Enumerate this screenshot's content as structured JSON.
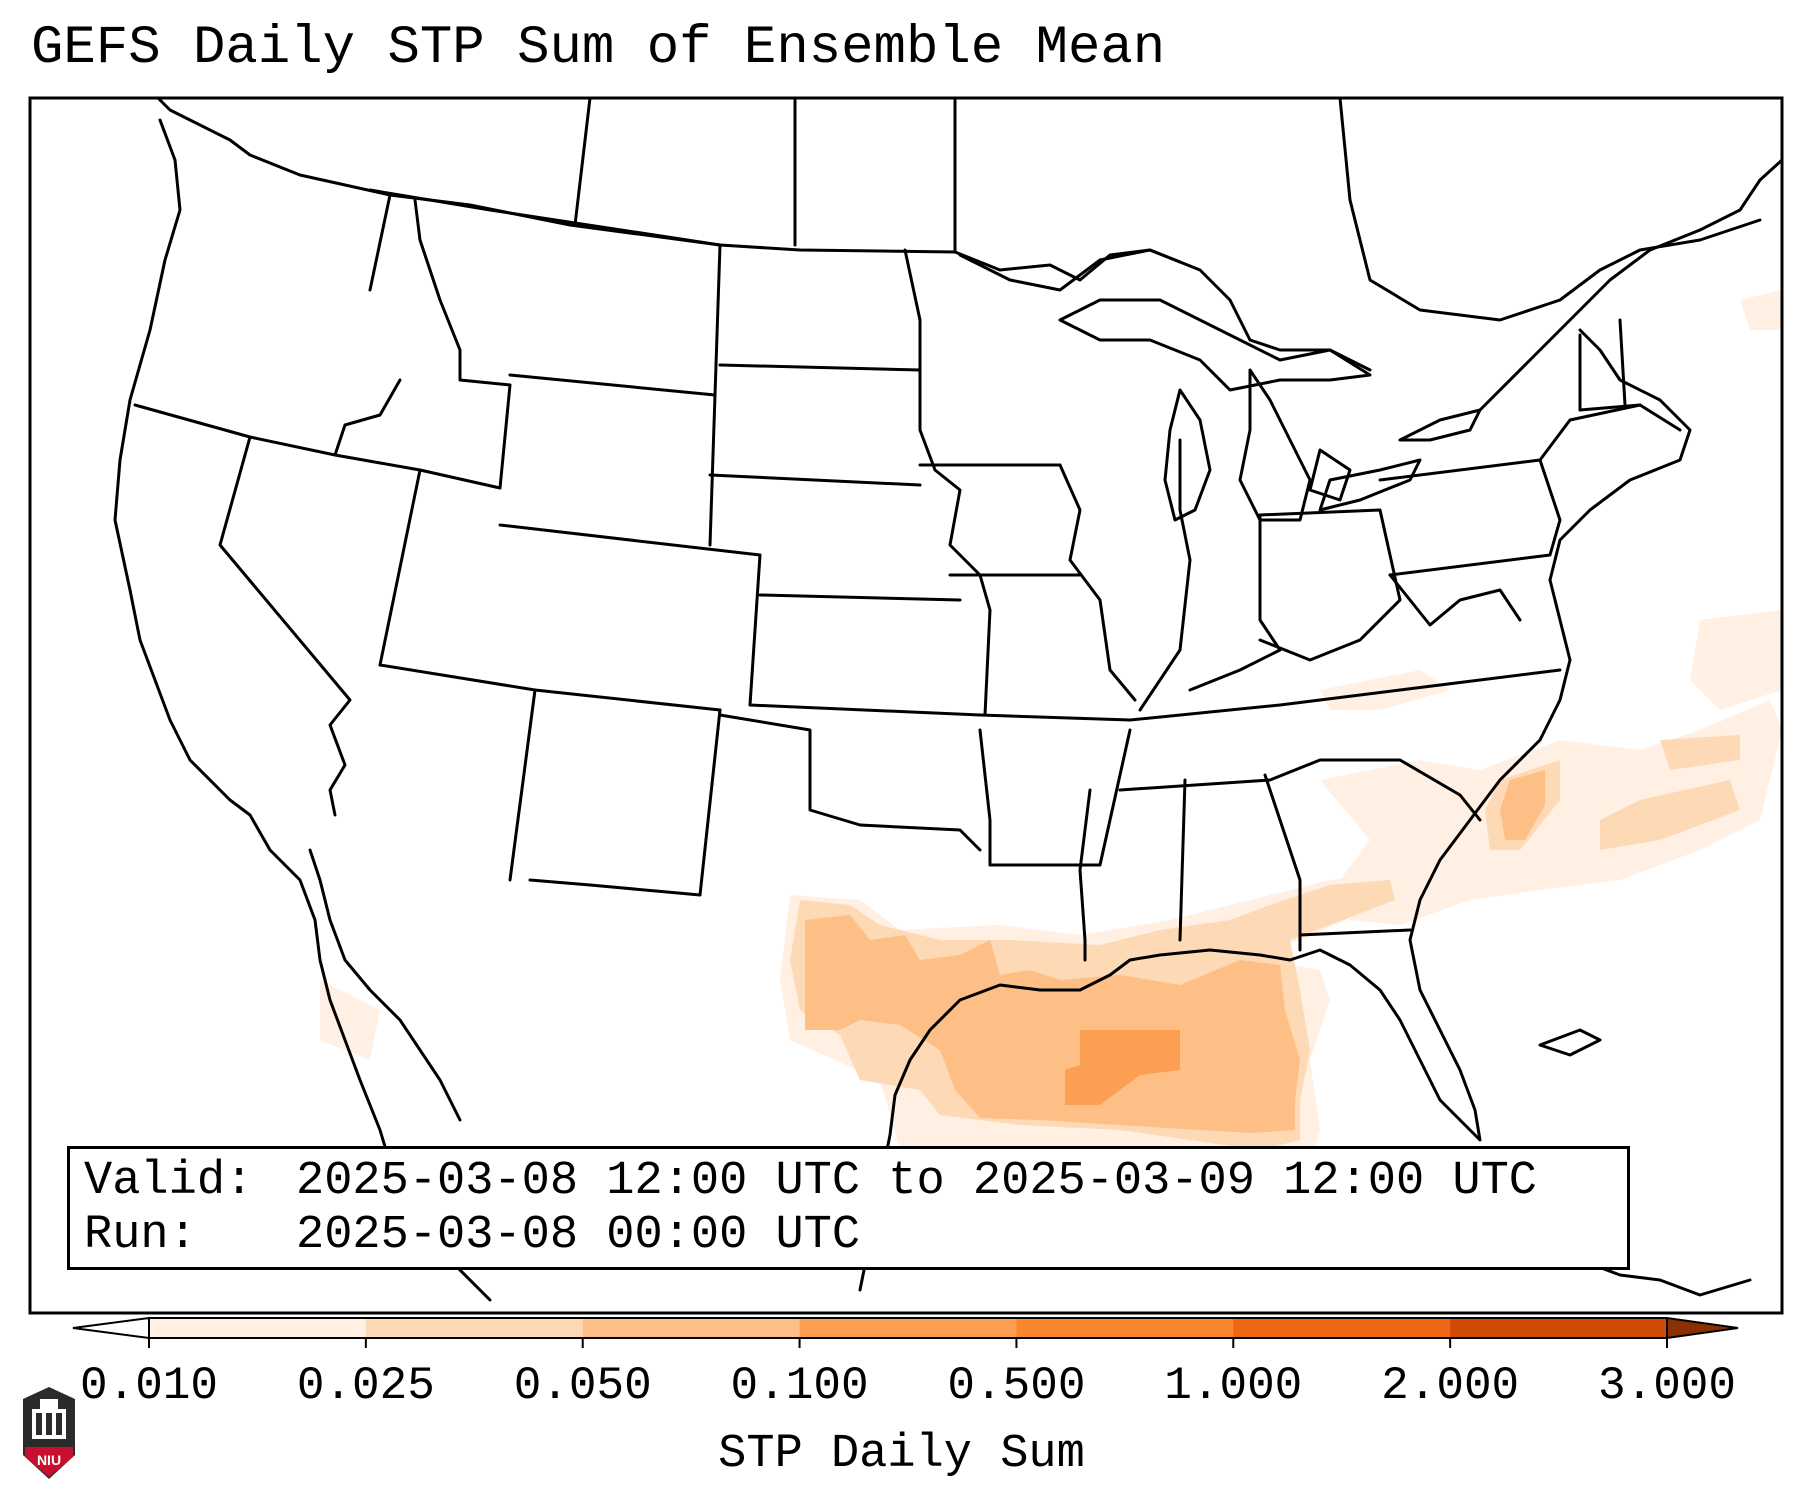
{
  "title": "GEFS Daily STP Sum of Ensemble Mean",
  "info": {
    "valid_label": "Valid:",
    "valid_value": "2025-03-08 12:00 UTC to 2025-03-09 12:00 UTC",
    "run_label": "Run:",
    "run_value": "2025-03-08 00:00 UTC"
  },
  "colorbar": {
    "label": "STP Daily Sum",
    "ticks": [
      "0.010",
      "0.025",
      "0.050",
      "0.100",
      "0.500",
      "1.000",
      "2.000",
      "3.000"
    ],
    "colors": [
      "#fff0e3",
      "#fdd9b5",
      "#fdbf86",
      "#fd9f52",
      "#f98530",
      "#ec6614",
      "#cf4a04"
    ],
    "under_color": "#ffffff",
    "over_color": "#8a3003"
  },
  "logo": {
    "text": "NIU",
    "color": "#c8102e"
  }
}
